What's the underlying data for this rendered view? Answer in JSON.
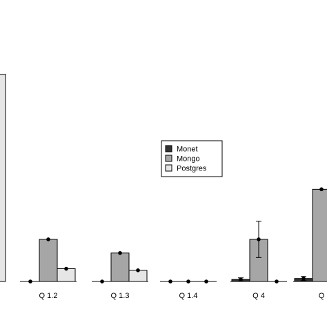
{
  "chart_data": {
    "type": "bar",
    "categories": [
      "Q 1.2",
      "Q 1.3",
      "Q 1.4",
      "Q 4",
      "Q"
    ],
    "series": [
      {
        "name": "Monet",
        "color": "#333333",
        "values": [
          0.0,
          0.0,
          0.0,
          0.09,
          0.13
        ],
        "errors": [
          0,
          0,
          0,
          0.07,
          0.09
        ]
      },
      {
        "name": "Mongo",
        "color": "#a6a6a6",
        "values": [
          1.85,
          1.25,
          0.0,
          1.85,
          4.05
        ],
        "errors": [
          0,
          0,
          0,
          0.8,
          0
        ]
      },
      {
        "name": "Postgres",
        "color": "#e6e6e6",
        "values": [
          0.56,
          0.49,
          0.0,
          0.0,
          0.0
        ],
        "errors": [
          0,
          0,
          0,
          0,
          0
        ]
      }
    ],
    "partial_bar": {
      "color": "#e6e6e6",
      "value": 9.1
    },
    "ylim": [
      0,
      10
    ],
    "legend_position": "center"
  }
}
